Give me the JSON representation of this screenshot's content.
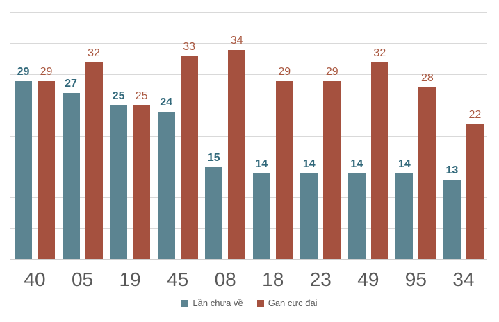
{
  "chart_data": {
    "type": "bar",
    "title": "",
    "xlabel": "",
    "ylabel": "",
    "categories": [
      "40",
      "05",
      "19",
      "45",
      "08",
      "18",
      "23",
      "49",
      "95",
      "34"
    ],
    "series": [
      {
        "name": "Lần chưa về",
        "color": "#5c8491",
        "label_color": "#31687a",
        "label_bold": true,
        "values": [
          29,
          27,
          25,
          24,
          15,
          14,
          14,
          14,
          14,
          13
        ]
      },
      {
        "name": "Gan cực đại",
        "color": "#a5513f",
        "label_color": "#a9573f",
        "label_bold": false,
        "values": [
          29,
          32,
          25,
          33,
          34,
          29,
          29,
          32,
          28,
          22
        ]
      }
    ],
    "ylim": [
      0,
      40
    ],
    "grid_step": 5,
    "grid": true,
    "y_axis_labels_visible": false,
    "legend_position": "bottom"
  },
  "colors": {
    "background": "#ffffff",
    "gridline": "#d9d9d9",
    "axis_line": "#d0d0d0",
    "x_axis_label": "#595959",
    "legend_text": "#595959"
  }
}
